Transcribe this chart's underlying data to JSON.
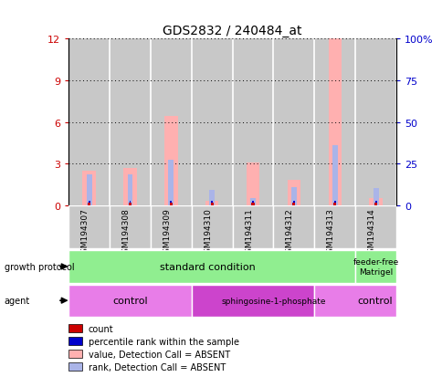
{
  "title": "GDS2832 / 240484_at",
  "samples": [
    "GSM194307",
    "GSM194308",
    "GSM194309",
    "GSM194310",
    "GSM194311",
    "GSM194312",
    "GSM194313",
    "GSM194314"
  ],
  "value_absent": [
    2.5,
    2.7,
    6.4,
    0.3,
    3.1,
    1.8,
    12.0,
    0.5
  ],
  "rank_absent": [
    2.2,
    2.2,
    3.3,
    1.1,
    0.5,
    1.3,
    4.3,
    1.2
  ],
  "ylim_left": [
    0,
    12
  ],
  "ylim_right": [
    0,
    100
  ],
  "yticks_left": [
    0,
    3,
    6,
    9,
    12
  ],
  "ytick_labels_left": [
    "0",
    "3",
    "6",
    "9",
    "12"
  ],
  "yticks_right": [
    0,
    25,
    50,
    75,
    100
  ],
  "ytick_labels_right": [
    "0",
    "25",
    "50",
    "75",
    "100%"
  ],
  "color_value_absent": "#ffb0b0",
  "color_rank_absent": "#aab4e8",
  "color_count": "#cc0000",
  "color_rank": "#0000cc",
  "tick_label_color_left": "#cc0000",
  "tick_label_color_right": "#0000cc",
  "growth_protocol_color": "#90ee90",
  "agent_color_light": "#e87de8",
  "agent_color_dark": "#cc44cc",
  "sample_col_color": "#c8c8c8",
  "legend_items": [
    "count",
    "percentile rank within the sample",
    "value, Detection Call = ABSENT",
    "rank, Detection Call = ABSENT"
  ],
  "legend_colors": [
    "#cc0000",
    "#0000cc",
    "#ffb0b0",
    "#aab4e8"
  ]
}
